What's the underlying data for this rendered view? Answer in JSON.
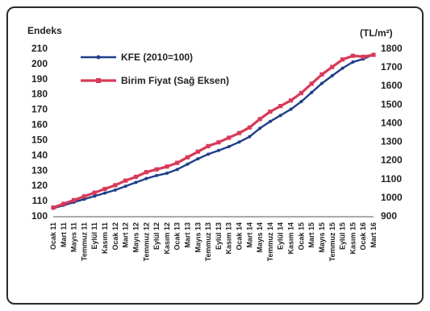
{
  "chart_data": {
    "type": "line",
    "ylabel_left": "Endeks",
    "ylabel_right": "(TL/m²)",
    "ylim_left": [
      100,
      210
    ],
    "ylim_right": [
      900,
      1800
    ],
    "yticks_left": [
      "100",
      "110",
      "120",
      "130",
      "140",
      "150",
      "160",
      "170",
      "180",
      "190",
      "200",
      "210"
    ],
    "yticks_right": [
      "900",
      "1000",
      "1100",
      "1200",
      "1300",
      "1400",
      "1500",
      "1600",
      "1700",
      "1800"
    ],
    "x": [
      "Ocak 11",
      "Mart 11",
      "Mayıs 11",
      "Temmuz 11",
      "Eylül 11",
      "Kasım 11",
      "Ocak 12",
      "Mart 12",
      "Mayıs 12",
      "Temmuz 12",
      "Eylül 12",
      "Kasım 12",
      "Ocak 13",
      "Mart 13",
      "Mayıs 13",
      "Temmuz 13",
      "Eylül 13",
      "Kasım 13",
      "Ocak 14",
      "Mart 14",
      "Mayıs 14",
      "Temmuz 14",
      "Eylül 14",
      "Kasım 14",
      "Ocak 15",
      "Mart 15",
      "Mayıs 15",
      "Temmuz 15",
      "Eylül 15",
      "Kasım 15",
      "Ocak 16",
      "Mart 16"
    ],
    "series": [
      {
        "name": "KFE (2010=100)",
        "axis": "left",
        "color": "#1f3f8a",
        "values": [
          105,
          107,
          109,
          111,
          113,
          115,
          117,
          119.5,
          122,
          124.5,
          126.5,
          128,
          130.5,
          134,
          137.5,
          140.5,
          143,
          145.5,
          148.5,
          152,
          157.5,
          162,
          166,
          170,
          175,
          181,
          187,
          192,
          197,
          201,
          203,
          206
        ]
      },
      {
        "name": "Birim Fiyat (Sağ Eksen)",
        "axis": "right",
        "color": "#d83a5a",
        "values": [
          945,
          965,
          985,
          1005,
          1025,
          1045,
          1065,
          1090,
          1110,
          1135,
          1150,
          1165,
          1185,
          1215,
          1245,
          1275,
          1295,
          1320,
          1345,
          1375,
          1420,
          1460,
          1490,
          1520,
          1560,
          1610,
          1660,
          1700,
          1740,
          1760,
          1755,
          1765
        ]
      }
    ],
    "grid": false,
    "legend_position": "top-left"
  }
}
